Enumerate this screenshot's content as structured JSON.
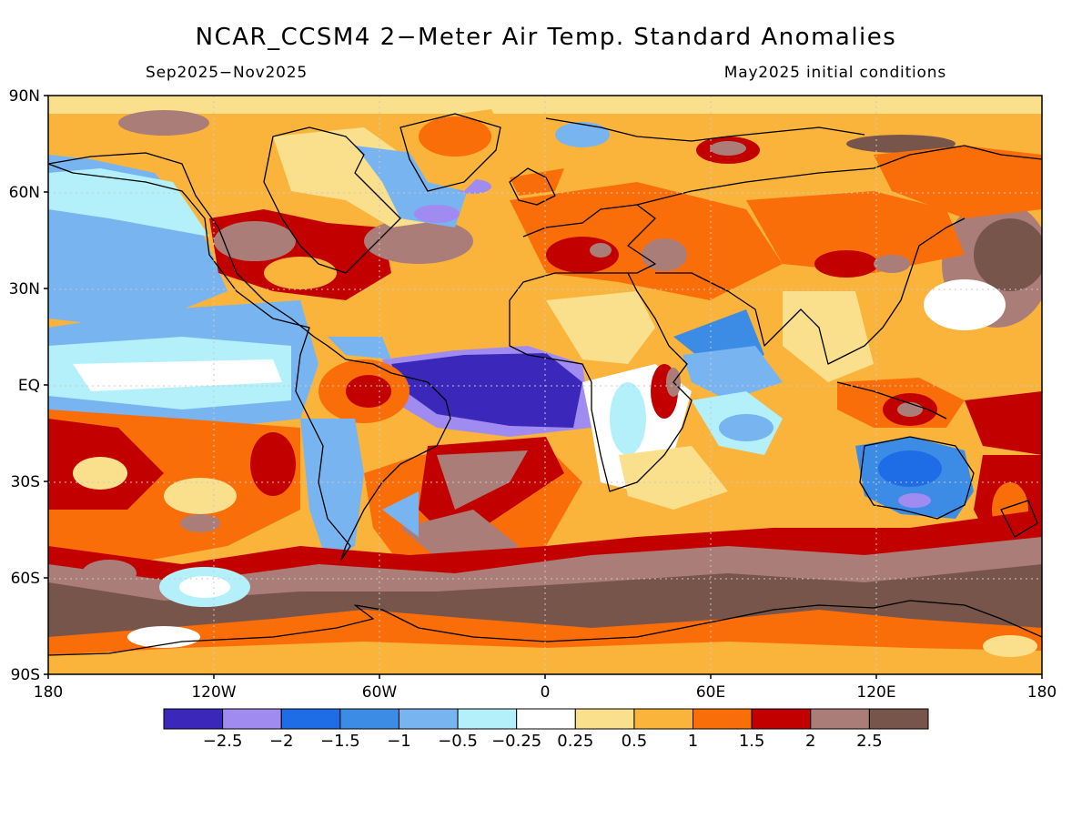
{
  "title": "NCAR_CCSM4 2−Meter Air Temp. Standard Anomalies",
  "subtitle_left": "Sep2025−Nov2025",
  "subtitle_right": "May2025 initial conditions",
  "lat_labels": [
    "90N",
    "60N",
    "30N",
    "EQ",
    "30S",
    "60S",
    "90S"
  ],
  "lon_labels": [
    "180",
    "120W",
    "60W",
    "0",
    "60E",
    "120E",
    "180"
  ],
  "colorbar": {
    "colors": [
      "#3b27ba",
      "#a08cf0",
      "#1e6ce6",
      "#3c8ce6",
      "#78b4f0",
      "#b4f0fa",
      "#ffffff",
      "#fae08c",
      "#fab43c",
      "#fa6e0a",
      "#c30000",
      "#aa7d78",
      "#78554b"
    ],
    "labels": [
      "−2.5",
      "−2",
      "−1.5",
      "−1",
      "−0.5",
      "−0.25",
      "0.25",
      "0.5",
      "1",
      "1.5",
      "2",
      "2.5"
    ]
  }
}
